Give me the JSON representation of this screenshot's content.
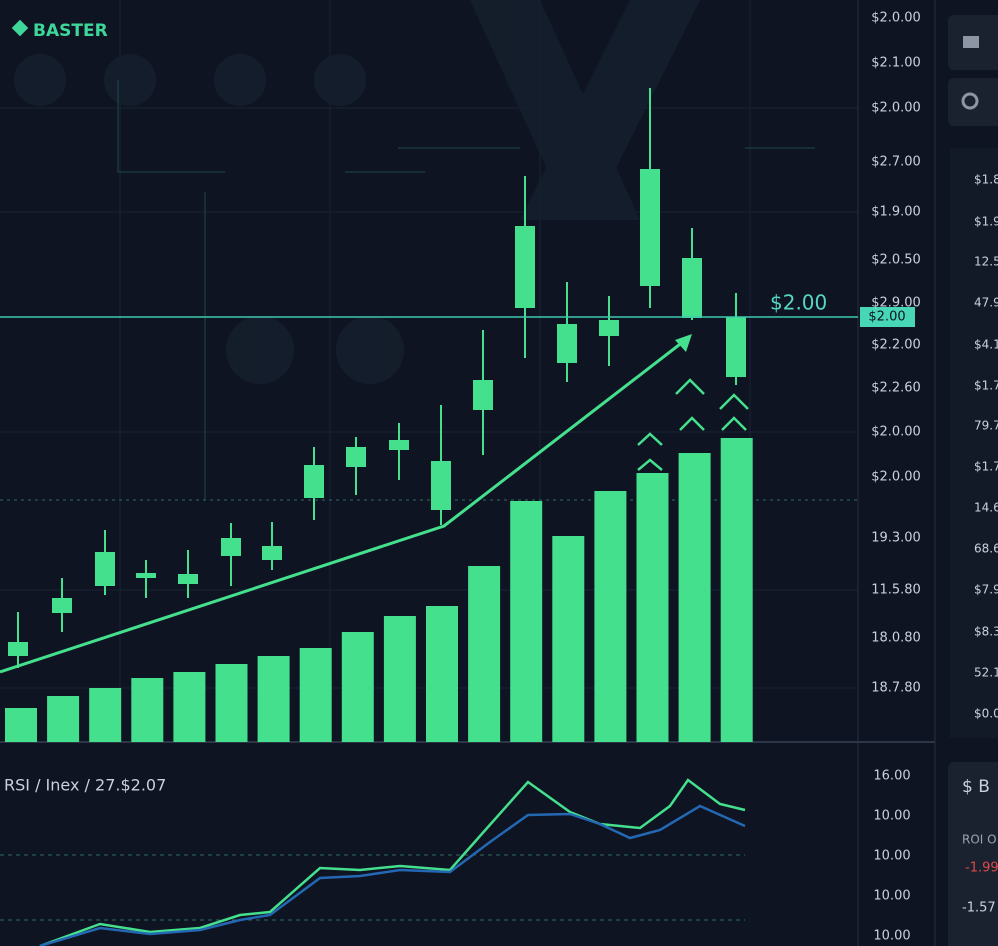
{
  "header": {
    "logo": "BASTER"
  },
  "price_axis": {
    "labels": [
      "$2.0.00",
      "$2.1.00",
      "$2.0.00",
      "$2.7.00",
      "$1.9.00",
      "$2.0.50",
      "$2.9.00",
      "$2.2.00",
      "$2.2.60",
      "$2.0.00",
      "$2.0.00",
      "19.3.00",
      "11.5.80",
      "18.0.80",
      "18.7.80"
    ]
  },
  "current_price": {
    "label": "$2.00",
    "tag": "$2.00"
  },
  "rsi": {
    "title": "RSI / Inex / 27.$2.07",
    "axis_labels": [
      "16.00",
      "10.00",
      "10.00",
      "10.00",
      "10.00"
    ]
  },
  "sidebar": {
    "values": [
      "$1.8",
      "$1.9",
      "12.5",
      "47.9",
      "$4.1",
      "$1.7",
      "79.7",
      "$1.7",
      "14.6",
      "68.6",
      "$7.9",
      "$8.3",
      "52.1",
      "$0.0"
    ],
    "panel": {
      "title": "$ B",
      "subtitle": "ROI O",
      "values": [
        "-1.99",
        "-1.57"
      ]
    }
  }
}
